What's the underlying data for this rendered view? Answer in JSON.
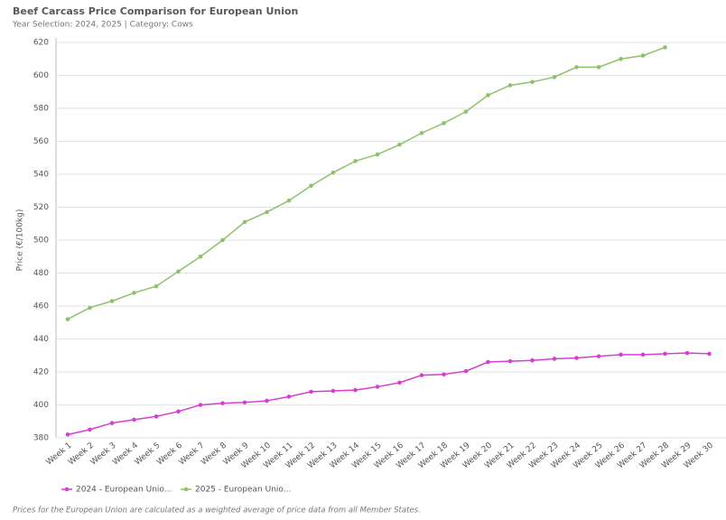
{
  "chart_data": {
    "type": "line",
    "title": "Beef Carcass Price Comparison for European Union",
    "subtitle": "Year Selection: 2024, 2025 | Category: Cows",
    "y_label": "Price (€/100kg)",
    "footnote": "Prices for the European Union are calculated as a weighted average of price data from all Member States.",
    "categories": [
      "Week 1",
      "Week 2",
      "Week 3",
      "Week 4",
      "Week 5",
      "Week 6",
      "Week 7",
      "Week 8",
      "Week 9",
      "Week 10",
      "Week 11",
      "Week 12",
      "Week 13",
      "Week 14",
      "Week 15",
      "Week 16",
      "Week 17",
      "Week 18",
      "Week 19",
      "Week 20",
      "Week 21",
      "Week 22",
      "Week 23",
      "Week 24",
      "Week 25",
      "Week 26",
      "Week 27",
      "Week 28",
      "Week 29",
      "Week 30"
    ],
    "series": [
      {
        "name": "2024 - European Unio...",
        "color": "#d63fd1",
        "values": [
          382,
          385,
          389,
          391,
          393,
          396,
          400,
          401,
          401.5,
          402.5,
          405,
          408,
          408.5,
          409,
          411,
          413.5,
          418,
          418.5,
          420.5,
          426,
          426.5,
          427,
          428,
          428.5,
          429.5,
          430.5,
          430.5,
          431,
          431.5,
          431
        ]
      },
      {
        "name": "2025 - European Unio...",
        "color": "#8dc26a",
        "values": [
          452,
          459,
          463,
          468,
          472,
          481,
          490,
          500,
          511,
          517,
          524,
          533,
          541,
          548,
          552,
          558,
          565,
          571,
          578,
          588,
          594,
          596,
          599,
          605,
          605,
          610,
          612,
          617,
          null,
          null
        ]
      }
    ],
    "ylim": [
      380,
      620
    ],
    "yticks": [
      380,
      400,
      420,
      440,
      460,
      480,
      500,
      520,
      540,
      560,
      580,
      600,
      620
    ],
    "grid": true
  }
}
